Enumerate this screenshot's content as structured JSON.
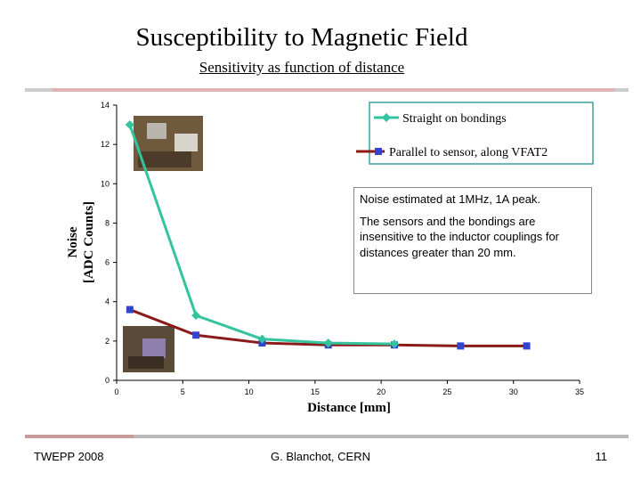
{
  "title": "Susceptibility to Magnetic Field",
  "subtitle": "Sensitivity as function of distance",
  "chart_data": {
    "type": "line",
    "xlabel": "Distance [mm]",
    "ylabel": "Noise [ADC Counts]",
    "ylabel_lines": [
      "Noise",
      "[ADC Counts]"
    ],
    "xlim": [
      0,
      35
    ],
    "ylim": [
      0,
      14
    ],
    "x_ticks": [
      0,
      5,
      10,
      15,
      20,
      25,
      30,
      35
    ],
    "y_ticks": [
      0,
      2,
      4,
      6,
      8,
      10,
      12,
      14
    ],
    "grid": false,
    "legend_position": "top-right",
    "series": [
      {
        "name": "Straight on bondings",
        "color": "#33c49e",
        "marker": "diamond",
        "x": [
          1,
          6,
          11,
          16,
          21
        ],
        "y": [
          13,
          3.3,
          2.1,
          1.9,
          1.85
        ]
      },
      {
        "name": "Parallel to sensor, along VFAT2",
        "color": "#8b1a1a",
        "marker_color": "#3344cc",
        "marker": "square",
        "x": [
          1,
          6,
          11,
          16,
          21,
          26,
          31
        ],
        "y": [
          3.6,
          2.3,
          1.9,
          1.8,
          1.8,
          1.75,
          1.75
        ]
      }
    ]
  },
  "callout": {
    "line1": "Noise estimated at 1MHz, 1A peak.",
    "line2": "The sensors and the bondings are insensitive to the inductor couplings for distances greater than 20 mm."
  },
  "footer": {
    "left": "TWEPP 2008",
    "center": "G. Blanchot, CERN",
    "page": "11"
  }
}
